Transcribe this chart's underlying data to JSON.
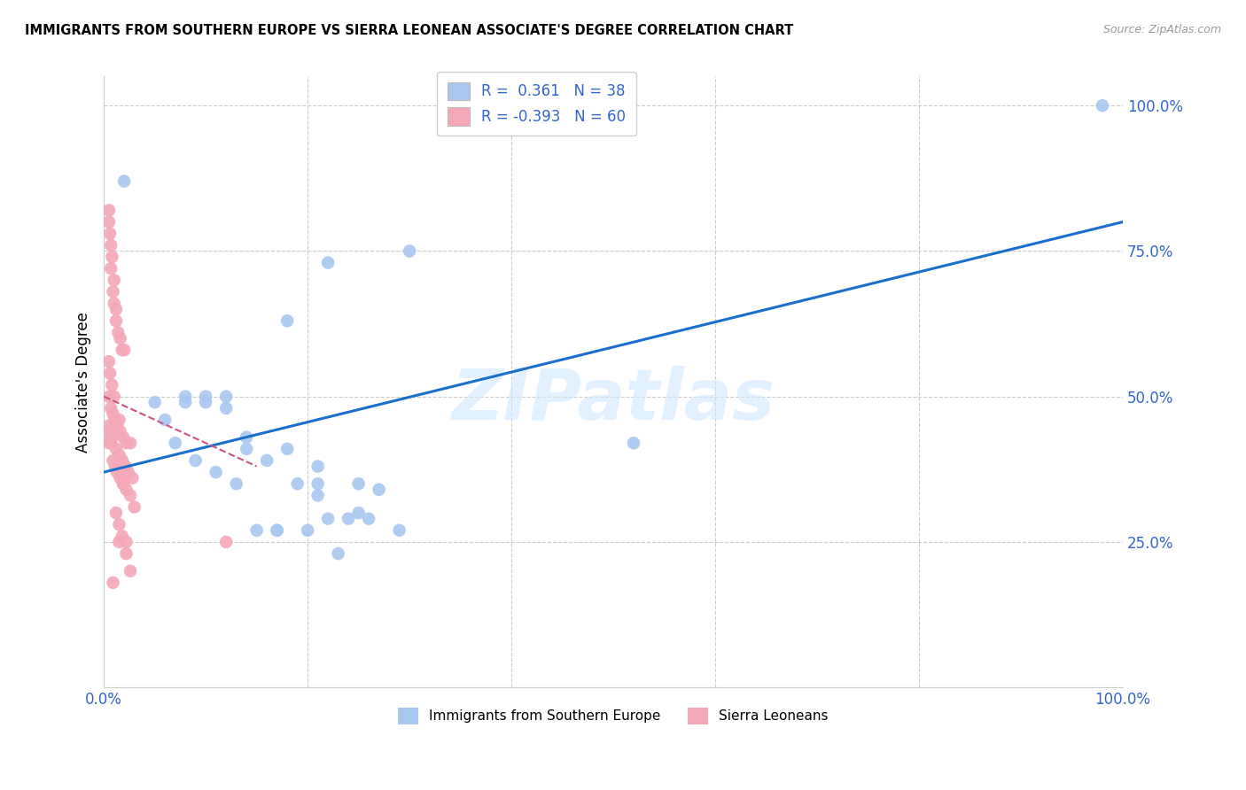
{
  "title": "IMMIGRANTS FROM SOUTHERN EUROPE VS SIERRA LEONEAN ASSOCIATE'S DEGREE CORRELATION CHART",
  "source": "Source: ZipAtlas.com",
  "ylabel": "Associate's Degree",
  "watermark": "ZIPatlas",
  "xlim": [
    0.0,
    1.0
  ],
  "ylim": [
    0.0,
    1.05
  ],
  "legend_blue_R": "0.361",
  "legend_blue_N": "38",
  "legend_pink_R": "-0.393",
  "legend_pink_N": "60",
  "legend_blue_label": "Immigrants from Southern Europe",
  "legend_pink_label": "Sierra Leoneans",
  "blue_color": "#a8c8f0",
  "pink_color": "#f4a8b8",
  "blue_line_color": "#1a6fcc",
  "pink_line_color": "#cc5580",
  "background_color": "#ffffff",
  "grid_color": "#cccccc",
  "right_tick_color": "#3366cc",
  "blue_scatter_x": [
    0.02,
    0.05,
    0.06,
    0.07,
    0.08,
    0.08,
    0.09,
    0.1,
    0.1,
    0.11,
    0.12,
    0.12,
    0.13,
    0.14,
    0.14,
    0.15,
    0.16,
    0.17,
    0.17,
    0.18,
    0.18,
    0.19,
    0.2,
    0.21,
    0.21,
    0.21,
    0.22,
    0.22,
    0.23,
    0.24,
    0.25,
    0.25,
    0.26,
    0.27,
    0.29,
    0.3,
    0.52,
    0.98
  ],
  "blue_scatter_y": [
    0.87,
    0.49,
    0.46,
    0.42,
    0.49,
    0.5,
    0.39,
    0.5,
    0.49,
    0.37,
    0.5,
    0.48,
    0.35,
    0.41,
    0.43,
    0.27,
    0.39,
    0.27,
    0.27,
    0.63,
    0.41,
    0.35,
    0.27,
    0.38,
    0.35,
    0.33,
    0.73,
    0.29,
    0.23,
    0.29,
    0.35,
    0.3,
    0.29,
    0.34,
    0.27,
    0.75,
    0.42,
    1.0
  ],
  "pink_scatter_x": [
    0.005,
    0.005,
    0.005,
    0.005,
    0.005,
    0.005,
    0.006,
    0.006,
    0.006,
    0.007,
    0.007,
    0.007,
    0.007,
    0.008,
    0.008,
    0.008,
    0.009,
    0.009,
    0.009,
    0.01,
    0.01,
    0.01,
    0.011,
    0.011,
    0.011,
    0.012,
    0.012,
    0.012,
    0.013,
    0.013,
    0.014,
    0.015,
    0.015,
    0.015,
    0.016,
    0.016,
    0.016,
    0.018,
    0.018,
    0.018,
    0.019,
    0.019,
    0.02,
    0.021,
    0.022,
    0.022,
    0.022,
    0.024,
    0.026,
    0.026,
    0.028,
    0.03,
    0.007,
    0.009,
    0.012,
    0.015,
    0.019,
    0.022,
    0.026,
    0.12
  ],
  "pink_scatter_y": [
    0.82,
    0.8,
    0.56,
    0.5,
    0.45,
    0.42,
    0.78,
    0.54,
    0.44,
    0.76,
    0.72,
    0.48,
    0.43,
    0.74,
    0.52,
    0.43,
    0.68,
    0.47,
    0.39,
    0.7,
    0.66,
    0.5,
    0.46,
    0.38,
    0.44,
    0.65,
    0.63,
    0.41,
    0.45,
    0.37,
    0.61,
    0.4,
    0.46,
    0.28,
    0.6,
    0.44,
    0.36,
    0.58,
    0.39,
    0.26,
    0.43,
    0.35,
    0.58,
    0.38,
    0.34,
    0.42,
    0.23,
    0.37,
    0.33,
    0.2,
    0.36,
    0.31,
    0.42,
    0.18,
    0.3,
    0.25,
    0.35,
    0.25,
    0.42,
    0.25
  ],
  "blue_line_x0": 0.0,
  "blue_line_y0": 0.37,
  "blue_line_x1": 1.0,
  "blue_line_y1": 0.8,
  "pink_line_x0": 0.0,
  "pink_line_y0": 0.5,
  "pink_line_x1": 0.15,
  "pink_line_y1": 0.38,
  "ytick_values": [
    0.0,
    0.25,
    0.5,
    0.75,
    1.0
  ],
  "ytick_labels": [
    "",
    "25.0%",
    "50.0%",
    "75.0%",
    "100.0%"
  ],
  "xtick_left_label": "0.0%",
  "xtick_right_label": "100.0%"
}
